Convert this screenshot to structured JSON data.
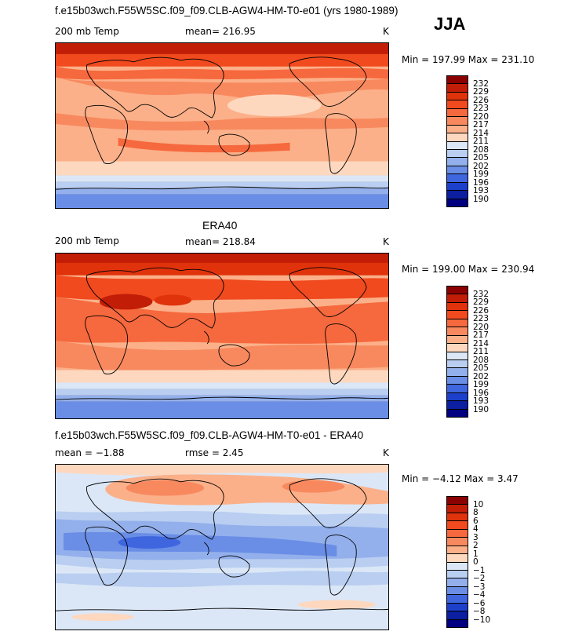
{
  "season": "JJA",
  "panels": [
    {
      "title": "f.e15b03wch.F55W5SC.f09_f09.CLB-AGW4-HM-T0-e01 (yrs 1980-1989)",
      "left_label": "200 mb Temp",
      "center_label": "mean= 216.95",
      "units": "K",
      "range_text": "Min = 197.99 Max = 231.10",
      "colorbar_labels": [
        "232",
        "229",
        "226",
        "223",
        "220",
        "217",
        "214",
        "211",
        "208",
        "205",
        "202",
        "199",
        "196",
        "193",
        "190"
      ],
      "colorbar_colors": [
        "#8b0000",
        "#c21d06",
        "#e0330c",
        "#f04a1e",
        "#f6683d",
        "#f8895f",
        "#fbb089",
        "#fdd8bf",
        "#dbe7f7",
        "#b9cef0",
        "#93b0ec",
        "#6a8ee6",
        "#3f66de",
        "#1c40cc",
        "#0b1fa0",
        "#000080"
      ]
    },
    {
      "title": "ERA40",
      "left_label": "200 mb Temp",
      "center_label": "mean= 218.84",
      "units": "K",
      "range_text": "Min = 199.00 Max = 230.94",
      "colorbar_labels": [
        "232",
        "229",
        "226",
        "223",
        "220",
        "217",
        "214",
        "211",
        "208",
        "205",
        "202",
        "199",
        "196",
        "193",
        "190"
      ],
      "colorbar_colors": [
        "#8b0000",
        "#c21d06",
        "#e0330c",
        "#f04a1e",
        "#f6683d",
        "#f8895f",
        "#fbb089",
        "#fdd8bf",
        "#dbe7f7",
        "#b9cef0",
        "#93b0ec",
        "#6a8ee6",
        "#3f66de",
        "#1c40cc",
        "#0b1fa0",
        "#000080"
      ]
    },
    {
      "title": "f.e15b03wch.F55W5SC.f09_f09.CLB-AGW4-HM-T0-e01 - ERA40",
      "left_label": "mean =   −1.88",
      "center_label": "rmse =    2.45",
      "units": "K",
      "range_text": "Min =  −4.12 Max =    3.47",
      "colorbar_labels": [
        "10",
        "8",
        "6",
        "4",
        "3",
        "2",
        "1",
        "0",
        "−1",
        "−2",
        "−3",
        "−4",
        "−6",
        "−8",
        "−10"
      ],
      "colorbar_colors": [
        "#8b0000",
        "#c21d06",
        "#e0330c",
        "#f04a1e",
        "#f6683d",
        "#f8895f",
        "#fbb089",
        "#fdd8bf",
        "#dbe7f7",
        "#b9cef0",
        "#93b0ec",
        "#6a8ee6",
        "#3f66de",
        "#1c40cc",
        "#0b1fa0",
        "#000080"
      ]
    }
  ]
}
